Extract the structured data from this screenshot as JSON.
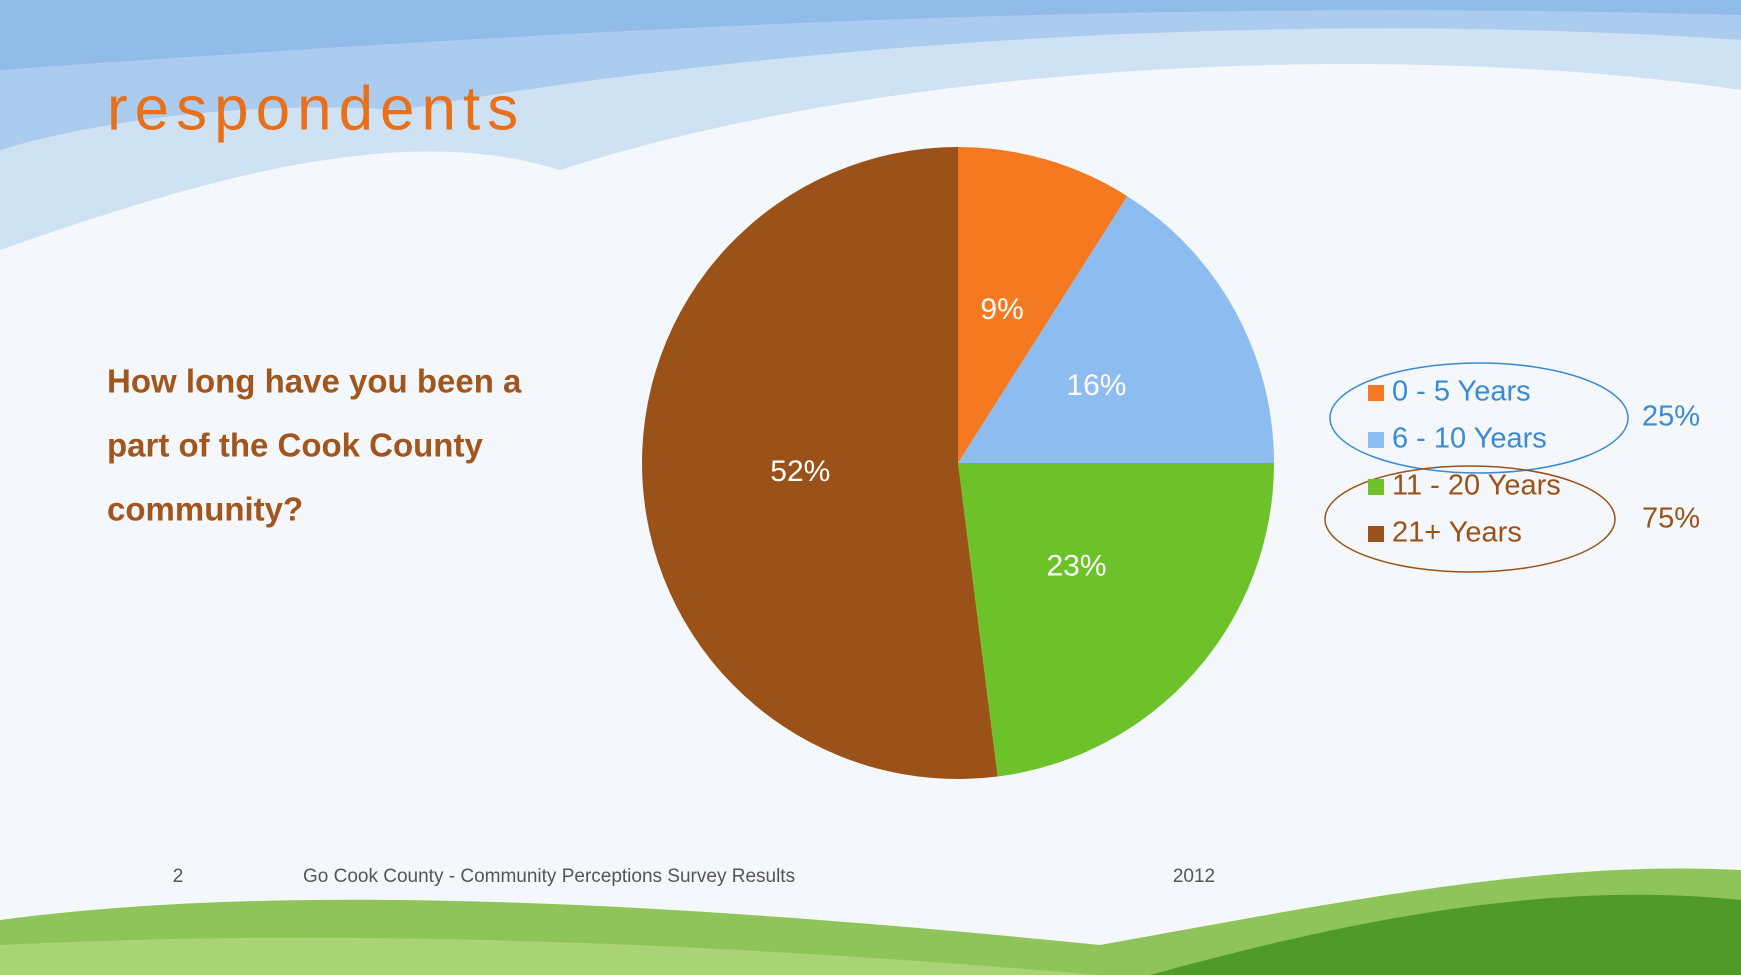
{
  "title": "respondents",
  "question": [
    "How long have you been a",
    "part of the Cook County",
    "community?"
  ],
  "footer": {
    "page": "2",
    "text": "Go Cook County - Community Perceptions Survey Results",
    "year": "2012"
  },
  "chart_data": {
    "type": "pie",
    "categories": [
      "0 - 5 Years",
      "6 - 10 Years",
      "11 - 20 Years",
      "21+ Years"
    ],
    "values": [
      9,
      16,
      23,
      52
    ],
    "value_labels": [
      "9%",
      "16%",
      "23%",
      "52%"
    ],
    "colors": [
      "#f47920",
      "#8dbdf0",
      "#6dc22a",
      "#9a5218"
    ],
    "annotations": [
      {
        "text": "25%",
        "color": "#3a8ad6"
      },
      {
        "text": "75%",
        "color": "#9a5218"
      }
    ]
  }
}
